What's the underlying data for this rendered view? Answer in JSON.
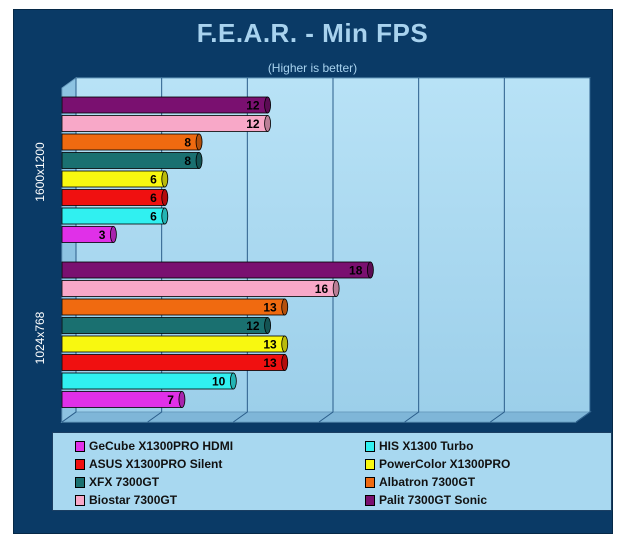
{
  "chart_data": {
    "type": "bar",
    "orientation": "horizontal",
    "title": "F.E.A.R. - Min FPS",
    "subtitle": "(Higher is better)",
    "categories": [
      "1600x1200",
      "1024x768"
    ],
    "xlim": [
      0,
      30
    ],
    "grid": true,
    "legend_position": "bottom",
    "series": [
      {
        "name": "GeCube X1300PRO HDMI",
        "color": "#e030e8",
        "values": [
          3,
          7
        ]
      },
      {
        "name": "HIS X1300 Turbo",
        "color": "#30f0f0",
        "values": [
          6,
          10
        ]
      },
      {
        "name": "ASUS X1300PRO Silent",
        "color": "#f01010",
        "values": [
          6,
          13
        ]
      },
      {
        "name": "PowerColor X1300PRO",
        "color": "#f8f810",
        "values": [
          6,
          13
        ]
      },
      {
        "name": "XFX 7300GT",
        "color": "#1a7070",
        "values": [
          8,
          12
        ]
      },
      {
        "name": "Albatron 7300GT",
        "color": "#f06a10",
        "values": [
          8,
          13
        ]
      },
      {
        "name": "Biostar 7300GT",
        "color": "#f8a8c8",
        "values": [
          12,
          16
        ]
      },
      {
        "name": "Palit 7300GT Sonic",
        "color": "#7a1070",
        "values": [
          12,
          18
        ]
      }
    ]
  }
}
